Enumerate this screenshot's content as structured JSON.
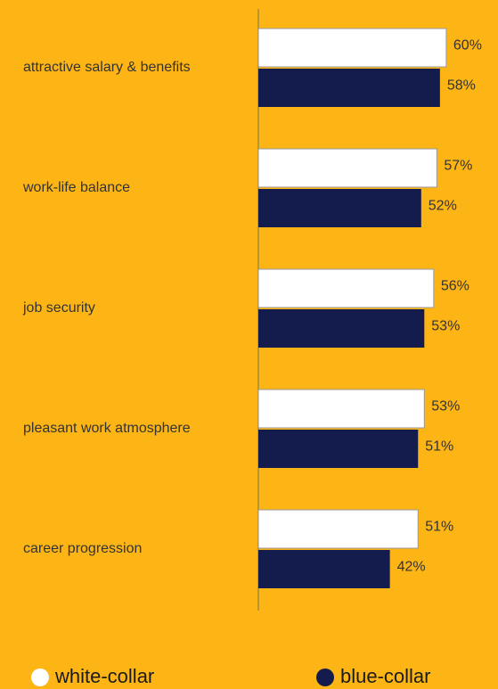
{
  "chart_data": {
    "type": "bar",
    "orientation": "horizontal",
    "categories": [
      "attractive salary & benefits",
      "work-life balance",
      "job security",
      "pleasant work atmosphere",
      "career progression"
    ],
    "series": [
      {
        "name": "white-collar",
        "color": "#ffffff",
        "values": [
          60,
          57,
          56,
          53,
          51
        ],
        "value_labels": [
          "60%",
          "57%",
          "56%",
          "53%",
          "51%"
        ]
      },
      {
        "name": "blue-collar",
        "color": "#141b4d",
        "values": [
          58,
          52,
          53,
          51,
          42
        ],
        "value_labels": [
          "58%",
          "52%",
          "53%",
          "51%",
          "42%"
        ]
      }
    ],
    "background": "#fdb515"
  }
}
